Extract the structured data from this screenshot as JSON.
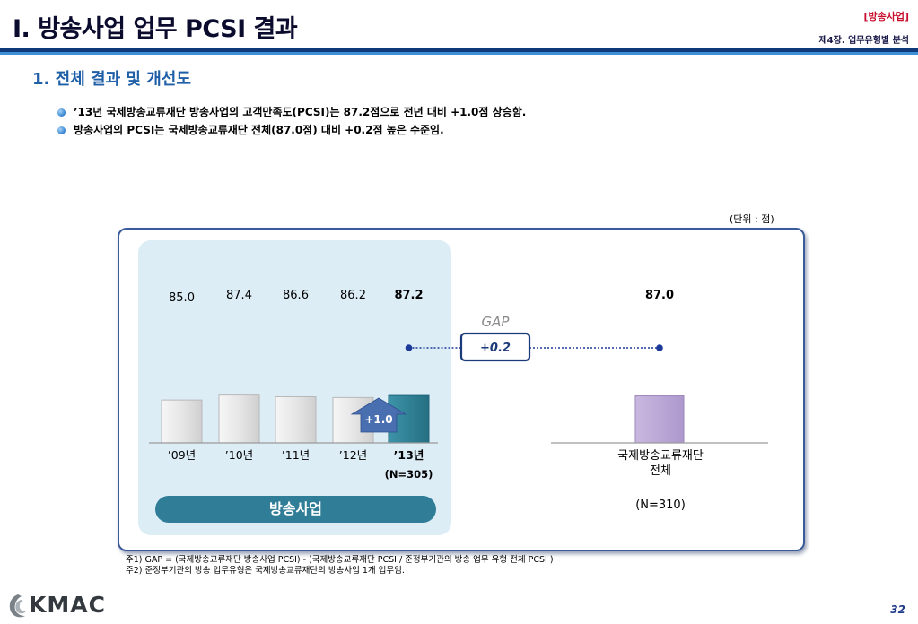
{
  "header": {
    "title": "I. 방송사업 업무 PCSI 결과",
    "section_tag": "[방송사업]",
    "chapter_label": "제4장. 업무유형별 분석"
  },
  "section_heading": "1. 전체 결과 및 개선도",
  "bullets": [
    "’13년 국제방송교류재단 방송사업의 고객만족도(PCSI)는 87.2점으로 전년 대비 +1.0점 상승함.",
    "방송사업의 PCSI는 국제방송교류재단 전체(87.0점) 대비 +0.2점 높은 수준임."
  ],
  "unit_label": "(단위 : 점)",
  "category_label": "방송사업",
  "footnotes": [
    "주1) GAP = (국제방송교류재단 방송사업 PCSI) - (국제방송교류재단 PCSI / 준정부기관의 방송 업무 유형 전체 PCSI )",
    "주2) 준정부기관의 방송 업무유형은 국제방송교류재단의 방송사업 1개 업무임."
  ],
  "logo_text": "KMAC",
  "page_number": "32",
  "colors": {
    "bar_past": "#e2e2e2",
    "bar_current": "#2f8195",
    "bar_overall": "#bcaad6",
    "gap_box_border": "#1b3a7a",
    "gap_label": "#8a8a8a",
    "improvement_arrow": "#4a6fb0"
  },
  "chart_data": {
    "type": "bar",
    "unit": "(단위 : 점)",
    "categories": [
      "’09년",
      "’10년",
      "’11년",
      "’12년",
      "’13년"
    ],
    "values": [
      85.0,
      87.4,
      86.6,
      86.2,
      87.2
    ],
    "value_labels": [
      "85.0",
      "87.4",
      "86.6",
      "86.2",
      "87.2"
    ],
    "current_sample": "(N=305)",
    "improvement_label": "+1.0",
    "comparison": {
      "name_lines": [
        "국제방송교류재단",
        "전체"
      ],
      "value": 87.0,
      "value_label": "87.0",
      "sample": "(N=310)"
    },
    "gap": {
      "label": "GAP",
      "value": 0.2,
      "value_label": "+0.2"
    },
    "ylim": [
      0,
      88
    ]
  }
}
